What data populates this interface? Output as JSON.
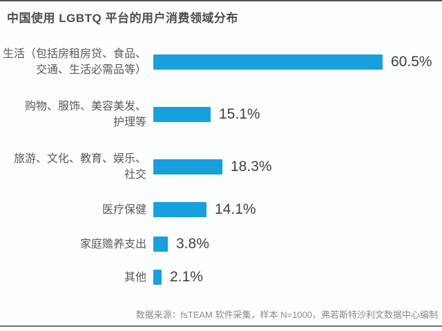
{
  "page": {
    "title": "中国使用 LGBTQ 平台的用户消费领域分布",
    "source_note": "数据来源：fsTEAM 软件采集，样本 N=1000，弗若斯特沙利文数据中心编制"
  },
  "colors": {
    "bar": "#17a0dc",
    "title_text": "#4d4d4d",
    "category_text": "#595959",
    "value_text": "#3f3f3f",
    "source_text": "#8a8a8a",
    "rule": "#6e6e6e"
  },
  "chart_data": {
    "type": "bar",
    "orientation": "horizontal",
    "title": "中国使用 LGBTQ 平台的用户消费领域分布",
    "categories": [
      "生活（包括房租房贷、食品、交通、生活必需品等）",
      "购物、服饰、美容美发、护理等",
      "旅游、文化、教育、娱乐、社交",
      "医疗保健",
      "家庭赡养支出",
      "其他"
    ],
    "values": [
      60.5,
      15.1,
      18.3,
      14.1,
      3.8,
      2.1
    ],
    "unit": "%",
    "xlim": [
      0,
      66
    ],
    "grid": false,
    "legend": "none",
    "source_note": "数据来源：fsTEAM 软件采集，样本 N=1000，弗若斯特沙利文数据中心编制",
    "rows": [
      {
        "label_line1": "生活（包括房租房贷、食品、",
        "label_line2": "交通、生活必需品等）",
        "value": 60.5,
        "value_label": "60.5%"
      },
      {
        "label_line1": "购物、服饰、美容美发、",
        "label_line2": "护理等",
        "value": 15.1,
        "value_label": "15.1%"
      },
      {
        "label_line1": "旅游、文化、教育、娱乐、",
        "label_line2": "社交",
        "value": 18.3,
        "value_label": "18.3%"
      },
      {
        "label_line1": "医疗保健",
        "label_line2": "",
        "value": 14.1,
        "value_label": "14.1%"
      },
      {
        "label_line1": "家庭赡养支出",
        "label_line2": "",
        "value": 3.8,
        "value_label": "3.8%"
      },
      {
        "label_line1": "其他",
        "label_line2": "",
        "value": 2.1,
        "value_label": "2.1%"
      }
    ]
  }
}
